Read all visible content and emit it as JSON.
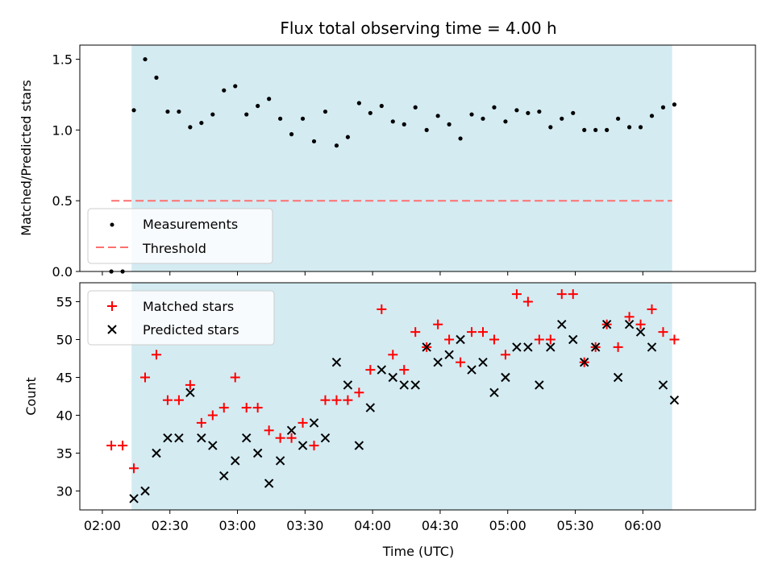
{
  "title": "Flux total observing time = 4.00 h",
  "xlabel": "Time (UTC)",
  "x_ticks": [
    "02:00",
    "02:30",
    "03:00",
    "03:30",
    "04:00",
    "04:30",
    "05:00",
    "05:30",
    "06:00"
  ],
  "colors": {
    "background_span": "#d4ebf2",
    "measurements": "#000000",
    "threshold": "#ff6f6f",
    "matched": "#ff0000",
    "predicted": "#000000"
  },
  "chart_data": [
    {
      "type": "scatter",
      "ylabel": "Matched/Predicted stars",
      "ylim": [
        0,
        1.6
      ],
      "y_ticks": [
        "0.0",
        "0.5",
        "1.0",
        "1.5"
      ],
      "xlim_minutes": [
        110,
        410
      ],
      "observing_window_minutes": [
        133,
        373
      ],
      "legend": [
        "Measurements",
        "Threshold"
      ],
      "legend_position": "lower-left",
      "threshold": {
        "value": 0.5,
        "x_start": 124,
        "x_end": 373
      },
      "series": [
        {
          "name": "Measurements",
          "x": [
            124,
            129,
            134,
            139,
            144,
            149,
            154,
            159,
            164,
            169,
            174,
            179,
            184,
            189,
            194,
            199,
            204,
            209,
            214,
            219,
            224,
            229,
            234,
            239,
            244,
            249,
            254,
            259,
            264,
            269,
            274,
            279,
            284,
            289,
            294,
            299,
            304,
            309,
            314,
            319,
            324,
            329,
            334,
            339,
            344,
            349,
            354,
            359,
            364,
            369,
            374
          ],
          "values": [
            0.0,
            0.0,
            1.14,
            1.5,
            1.37,
            1.13,
            1.13,
            1.02,
            1.05,
            1.11,
            1.28,
            1.31,
            1.11,
            1.17,
            1.22,
            1.08,
            0.97,
            1.08,
            0.92,
            1.13,
            0.89,
            0.95,
            1.19,
            1.12,
            1.17,
            1.06,
            1.04,
            1.16,
            1.0,
            1.1,
            1.04,
            0.94,
            1.11,
            1.08,
            1.16,
            1.06,
            1.14,
            1.12,
            1.13,
            1.02,
            1.08,
            1.12,
            1.0,
            1.0,
            1.0,
            1.08,
            1.02,
            1.02,
            1.1,
            1.16,
            1.18
          ]
        }
      ]
    },
    {
      "type": "scatter",
      "ylabel": "Count",
      "ylim": [
        27.5,
        57.5
      ],
      "y_ticks": [
        "30",
        "35",
        "40",
        "45",
        "50",
        "55"
      ],
      "xlim_minutes": [
        110,
        410
      ],
      "observing_window_minutes": [
        133,
        373
      ],
      "legend": [
        "Matched stars",
        "Predicted stars"
      ],
      "legend_position": "upper-left",
      "series": [
        {
          "name": "Matched stars",
          "marker": "+",
          "x": [
            124,
            129,
            134,
            139,
            144,
            149,
            154,
            159,
            164,
            169,
            174,
            179,
            184,
            189,
            194,
            199,
            204,
            209,
            214,
            219,
            224,
            229,
            234,
            239,
            244,
            249,
            254,
            259,
            264,
            269,
            274,
            279,
            284,
            289,
            294,
            299,
            304,
            309,
            314,
            319,
            324,
            329,
            334,
            339,
            344,
            349,
            354,
            359,
            364,
            369,
            374
          ],
          "values": [
            36,
            36,
            33,
            45,
            48,
            42,
            42,
            44,
            39,
            40,
            41,
            45,
            41,
            41,
            38,
            37,
            37,
            39,
            36,
            42,
            42,
            42,
            43,
            46,
            54,
            48,
            46,
            51,
            49,
            52,
            50,
            47,
            51,
            51,
            50,
            48,
            56,
            55,
            50,
            50,
            56,
            56,
            47,
            49,
            52,
            49,
            53,
            52,
            54,
            51,
            50
          ]
        },
        {
          "name": "Predicted stars",
          "marker": "x",
          "x": [
            134,
            139,
            144,
            149,
            154,
            159,
            164,
            169,
            174,
            179,
            184,
            189,
            194,
            199,
            204,
            209,
            214,
            219,
            224,
            229,
            234,
            239,
            244,
            249,
            254,
            259,
            264,
            269,
            274,
            279,
            284,
            289,
            294,
            299,
            304,
            309,
            314,
            319,
            324,
            329,
            334,
            339,
            344,
            349,
            354,
            359,
            364,
            369,
            374
          ],
          "values": [
            29,
            30,
            35,
            37,
            37,
            43,
            37,
            36,
            32,
            34,
            37,
            35,
            31,
            34,
            38,
            36,
            39,
            37,
            47,
            44,
            36,
            41,
            46,
            45,
            44,
            44,
            49,
            47,
            48,
            50,
            46,
            47,
            43,
            45,
            49,
            49,
            44,
            49,
            52,
            50,
            47,
            49,
            52,
            45,
            52,
            51,
            49,
            44,
            42
          ]
        }
      ]
    }
  ]
}
